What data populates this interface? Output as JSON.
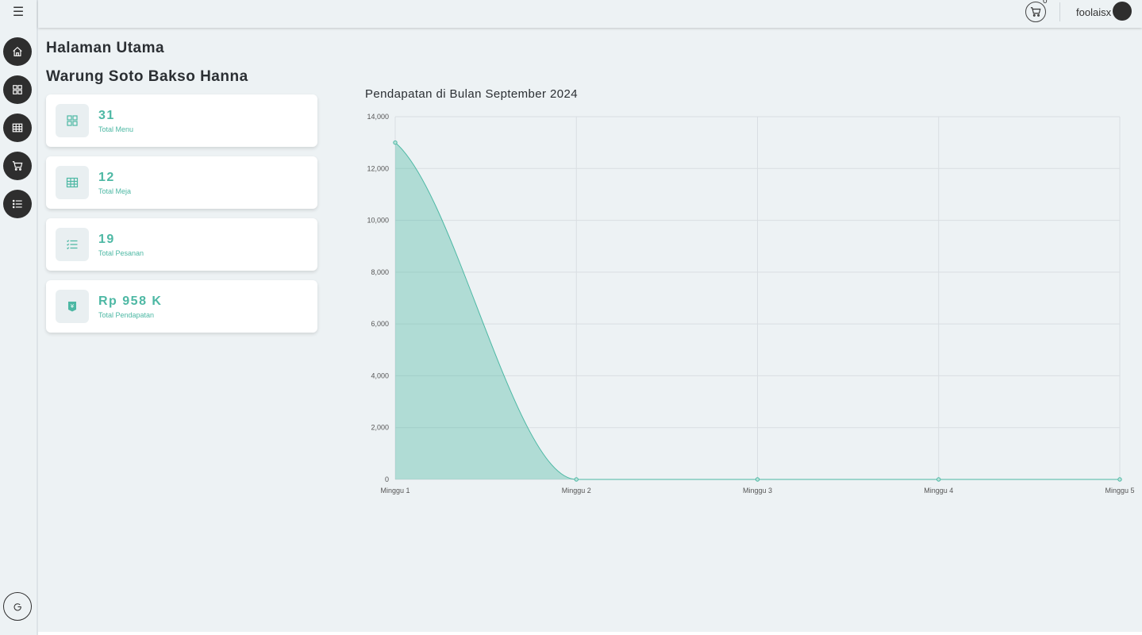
{
  "colors": {
    "accent": "#4db8a4",
    "dark": "#2e2e2e",
    "background": "#edf2f4"
  },
  "sidebar": {
    "toggle_icon": "hamburger-icon",
    "items": [
      {
        "icon": "home-icon"
      },
      {
        "icon": "grid-icon"
      },
      {
        "icon": "table-icon"
      },
      {
        "icon": "cart-icon"
      },
      {
        "icon": "list-icon"
      }
    ],
    "logout_icon": "logout-icon"
  },
  "topbar": {
    "cart_count": "0",
    "username": "foolaisx"
  },
  "page": {
    "title": "Halaman Utama",
    "shop_name": "Warung Soto Bakso Hanna"
  },
  "stats": [
    {
      "value": "31",
      "label": "Total Menu",
      "icon": "grid-icon"
    },
    {
      "value": "12",
      "label": "Total Meja",
      "icon": "table-icon"
    },
    {
      "value": "19",
      "label": "Total Pesanan",
      "icon": "list-icon"
    },
    {
      "value": "Rp 958 K",
      "label": "Total Pendapatan",
      "icon": "money-icon"
    }
  ],
  "chart_data": {
    "type": "area",
    "title": "Pendapatan di Bulan September 2024",
    "categories": [
      "Minggu 1",
      "Minggu 2",
      "Minggu 3",
      "Minggu 4",
      "Minggu 5"
    ],
    "values": [
      13000,
      0,
      0,
      0,
      0
    ],
    "ylim": [
      0,
      14000
    ],
    "yticks": [
      0,
      2000,
      4000,
      6000,
      8000,
      10000,
      12000,
      14000
    ],
    "ytick_labels": [
      "0",
      "2,000",
      "4,000",
      "6,000",
      "8,000",
      "10,000",
      "12,000",
      "14,000"
    ],
    "grid": true,
    "legend": "none"
  }
}
